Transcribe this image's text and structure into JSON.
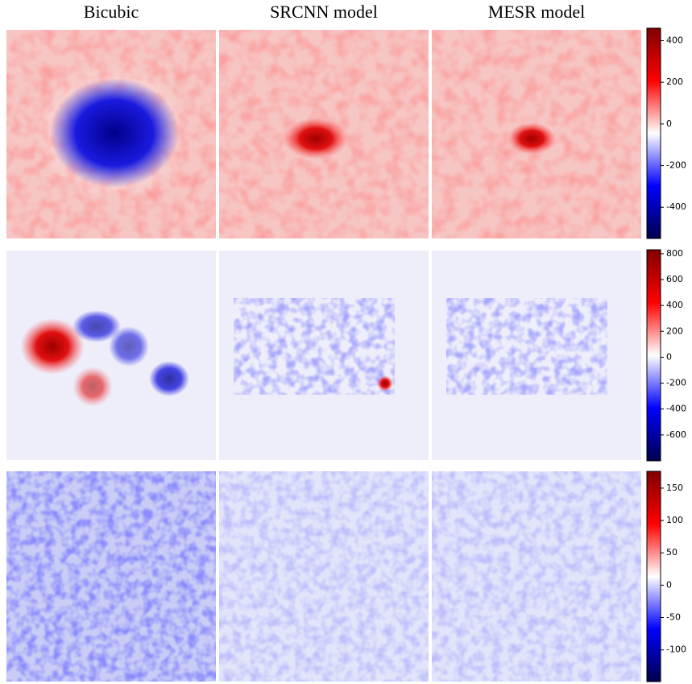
{
  "column_titles": [
    "Bicubic",
    "SRCNN model",
    "MESR model"
  ],
  "chart_data": [
    {
      "type": "heatmap",
      "colormap": [
        "#00004d",
        "#0000ff",
        "#ffffff",
        "#ff0000",
        "#800000"
      ],
      "colorbar_lim": [
        -550,
        460
      ],
      "colorbar_ticks": [
        -400,
        -200,
        0,
        200,
        400
      ]
    },
    {
      "type": "heatmap",
      "colormap": [
        "#00004d",
        "#0000ff",
        "#ffffff",
        "#ff0000",
        "#800000"
      ],
      "colorbar_lim": [
        -800,
        830
      ],
      "colorbar_ticks": [
        -600,
        -400,
        -200,
        0,
        200,
        400,
        600,
        800
      ]
    },
    {
      "type": "heatmap",
      "colormap": [
        "#00004d",
        "#0000ff",
        "#ffffff",
        "#ff0000",
        "#800000"
      ],
      "colorbar_lim": [
        -149,
        176
      ],
      "colorbar_ticks": [
        -100,
        -50,
        0,
        50,
        100,
        150
      ]
    }
  ]
}
